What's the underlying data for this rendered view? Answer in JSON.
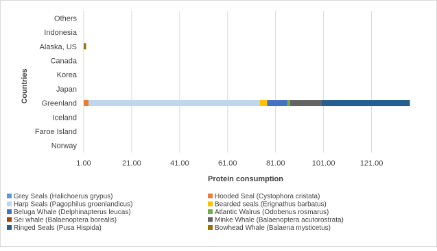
{
  "chart_data": {
    "type": "bar",
    "orientation": "horizontal",
    "stacked": true,
    "title": "",
    "xlabel": "Protein consumption",
    "ylabel": "Countries",
    "categories": [
      "Norway",
      "Faroe Island",
      "Iceland",
      "Greenland",
      "Japan",
      "Korea",
      "Canada",
      "Alaska, US",
      "Indonesia",
      "Others"
    ],
    "x_ticks": [
      "1.00",
      "21.00",
      "41.00",
      "61.00",
      "81.00",
      "101.00",
      "121.00"
    ],
    "xlim": [
      1,
      136
    ],
    "grid": "vertical",
    "legend_position": "bottom",
    "series": [
      {
        "name": "Grey Seals (Halichoerus grypus)",
        "color": "#5b9bd5",
        "values": [
          0,
          0,
          0,
          0,
          0,
          0,
          0,
          0,
          0,
          0
        ]
      },
      {
        "name": "Hooded Seal (Cystophora cristata)",
        "color": "#ed7d31",
        "values": [
          0,
          0,
          0,
          2,
          0,
          0,
          0,
          0,
          0,
          0
        ]
      },
      {
        "name": "Harp Seals (Pagophilus groenlandicus)",
        "color": "#bdd7ee",
        "values": [
          0,
          0,
          0,
          71.5,
          0,
          0,
          0,
          0,
          0,
          0
        ]
      },
      {
        "name": "Bearded seals (Erignathus barbatus)",
        "color": "#ffc000",
        "values": [
          0,
          0,
          0,
          3,
          0,
          0,
          0,
          0,
          0,
          0
        ]
      },
      {
        "name": "Beluga Whale (Delphinapterus leucas)",
        "color": "#4472c4",
        "values": [
          0,
          0,
          0,
          8.5,
          0,
          0,
          0,
          0,
          0,
          0
        ]
      },
      {
        "name": "Atlantic Walrus (Odobenus rosmarus)",
        "color": "#70ad47",
        "values": [
          0,
          0,
          0,
          1,
          0,
          0,
          0,
          0,
          0,
          0
        ]
      },
      {
        "name": "Sei whale (Balaenoptera borealis)",
        "color": "#9e480e",
        "values": [
          0,
          0,
          0,
          0,
          0,
          0,
          0,
          0,
          0,
          0
        ]
      },
      {
        "name": "Minke Whale (Balaenoptera acutorostrata)",
        "color": "#636363",
        "values": [
          0,
          0,
          0,
          13,
          0,
          0,
          0,
          0,
          0,
          0
        ]
      },
      {
        "name": "Ringed Seals (Pusa Hispida)",
        "color": "#255e91",
        "values": [
          0,
          0,
          0,
          37,
          0,
          0,
          0,
          0,
          0,
          0
        ]
      },
      {
        "name": "Bowhead Whale (Balaena mysticetus)",
        "color": "#997300",
        "values": [
          0,
          0,
          0,
          0,
          0,
          0,
          0,
          1,
          0,
          0
        ]
      }
    ]
  }
}
